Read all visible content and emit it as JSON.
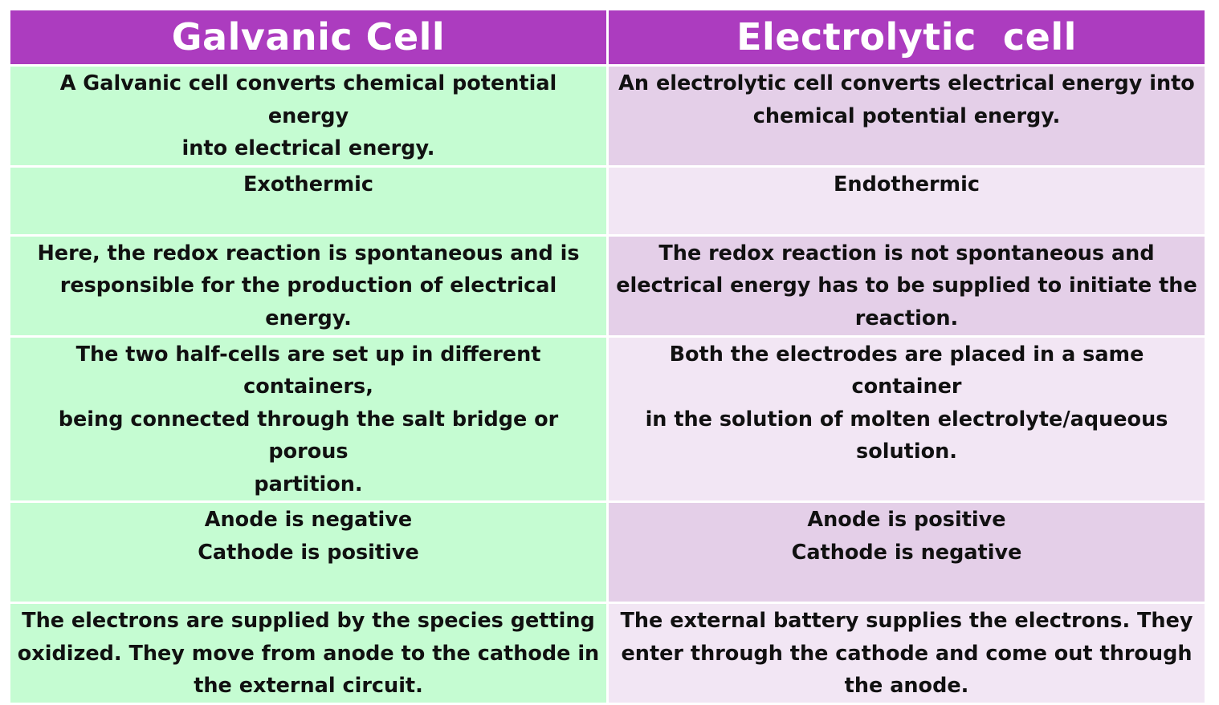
{
  "headers": {
    "galvanic": "Galvanic Cell",
    "electrolytic": "Electrolytic  cell"
  },
  "rows": [
    {
      "galvanic": [
        "A Galvanic cell converts chemical potential energy",
        "into electrical energy."
      ],
      "electrolytic": [
        "An electrolytic cell converts electrical energy into",
        "chemical potential energy."
      ]
    },
    {
      "galvanic": [
        "Exothermic"
      ],
      "electrolytic": [
        "Endothermic"
      ]
    },
    {
      "galvanic": [
        "Here, the redox reaction is spontaneous and is",
        "responsible for the production of electrical energy."
      ],
      "electrolytic": [
        "The redox reaction is not spontaneous and",
        "electrical energy has to be supplied to initiate the",
        "reaction."
      ]
    },
    {
      "galvanic": [
        "The two half-cells are set up in different containers,",
        "being connected through the salt bridge or porous",
        "partition."
      ],
      "electrolytic": [
        "Both the electrodes are placed in a same container",
        "in the solution of molten electrolyte/aqueous",
        "solution."
      ]
    },
    {
      "galvanic": [
        "Anode is negative",
        "Cathode is positive"
      ],
      "electrolytic": [
        "Anode is positive",
        "Cathode is negative"
      ]
    },
    {
      "galvanic": [
        "The electrons are supplied by the species getting",
        "oxidized. They move from anode to the cathode in",
        "the external circuit."
      ],
      "electrolytic": [
        "The external battery supplies the electrons. They",
        "enter through the cathode and come out through",
        "the anode."
      ]
    }
  ],
  "colors": {
    "header_bg": "#ac3cbf",
    "header_text": "#ffffff",
    "galvanic_bg": "#c5fcd2",
    "electrolytic_bg_dark": "#e4cfe8",
    "electrolytic_bg_light": "#f2e6f4"
  }
}
